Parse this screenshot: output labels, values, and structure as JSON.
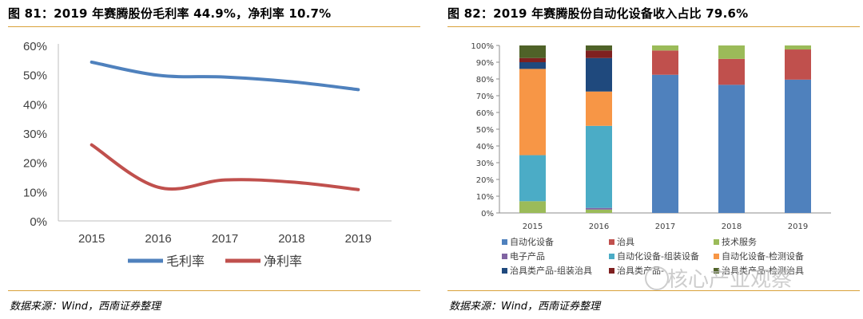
{
  "left": {
    "title": "图 81：2019 年赛腾股份毛利率 44.9%，净利率 10.7%",
    "source": "数据来源：Wind，西南证券整理"
  },
  "right": {
    "title": "图 82：2019 年赛腾股份自动化设备收入占比 79.6%",
    "source": "数据来源：Wind，西南证券整理"
  },
  "watermark": "核心产业观察",
  "chart_data": [
    {
      "type": "line",
      "x": [
        "2015",
        "2016",
        "2017",
        "2018",
        "2019"
      ],
      "yticks": [
        "0%",
        "10%",
        "20%",
        "30%",
        "40%",
        "50%",
        "60%"
      ],
      "ylim": [
        0,
        60
      ],
      "grid": false,
      "legend_position": "bottom",
      "series": [
        {
          "name": "毛利率",
          "color": "#4f81bd",
          "values": [
            54.3,
            49.8,
            49.2,
            47.6,
            44.9
          ]
        },
        {
          "name": "净利率",
          "color": "#c0504d",
          "values": [
            26.0,
            11.5,
            14.0,
            13.3,
            10.7
          ]
        }
      ]
    },
    {
      "type": "bar",
      "stacked": true,
      "categories": [
        "2015",
        "2016",
        "2017",
        "2018",
        "2019"
      ],
      "yticks": [
        "0%",
        "10%",
        "20%",
        "30%",
        "40%",
        "50%",
        "60%",
        "70%",
        "80%",
        "90%",
        "100%"
      ],
      "ylim": [
        0,
        100
      ],
      "legend_position": "bottom",
      "series": [
        {
          "name": "自动化设备",
          "color": "#4f81bd",
          "values": [
            0,
            0,
            82.5,
            76.5,
            79.6
          ]
        },
        {
          "name": "治具",
          "color": "#c0504d",
          "values": [
            0,
            0,
            14.5,
            15.5,
            18.0
          ]
        },
        {
          "name": "技术服务",
          "color": "#9bbb59",
          "values": [
            7.0,
            2.0,
            3.0,
            8.0,
            2.4
          ]
        },
        {
          "name": "电子产品",
          "color": "#8064a2",
          "values": [
            0,
            1.0,
            0,
            0,
            0
          ]
        },
        {
          "name": "自动化设备-组装设备",
          "color": "#4bacc6",
          "values": [
            27.5,
            49.0,
            0,
            0,
            0
          ]
        },
        {
          "name": "自动化设备-检测设备",
          "color": "#f79646",
          "values": [
            51.5,
            20.5,
            0,
            0,
            0
          ]
        },
        {
          "name": "治具类产品-组装治具",
          "color": "#1f497d",
          "values": [
            4.0,
            20.0,
            0,
            0,
            0
          ]
        },
        {
          "name": "治具类产品-",
          "color": "#7f2020",
          "values": [
            2.5,
            4.5,
            0,
            0,
            0
          ]
        },
        {
          "name": "治具类产品-检测治具",
          "color": "#4f6228",
          "values": [
            7.5,
            3.0,
            0,
            0,
            0
          ]
        }
      ]
    }
  ]
}
